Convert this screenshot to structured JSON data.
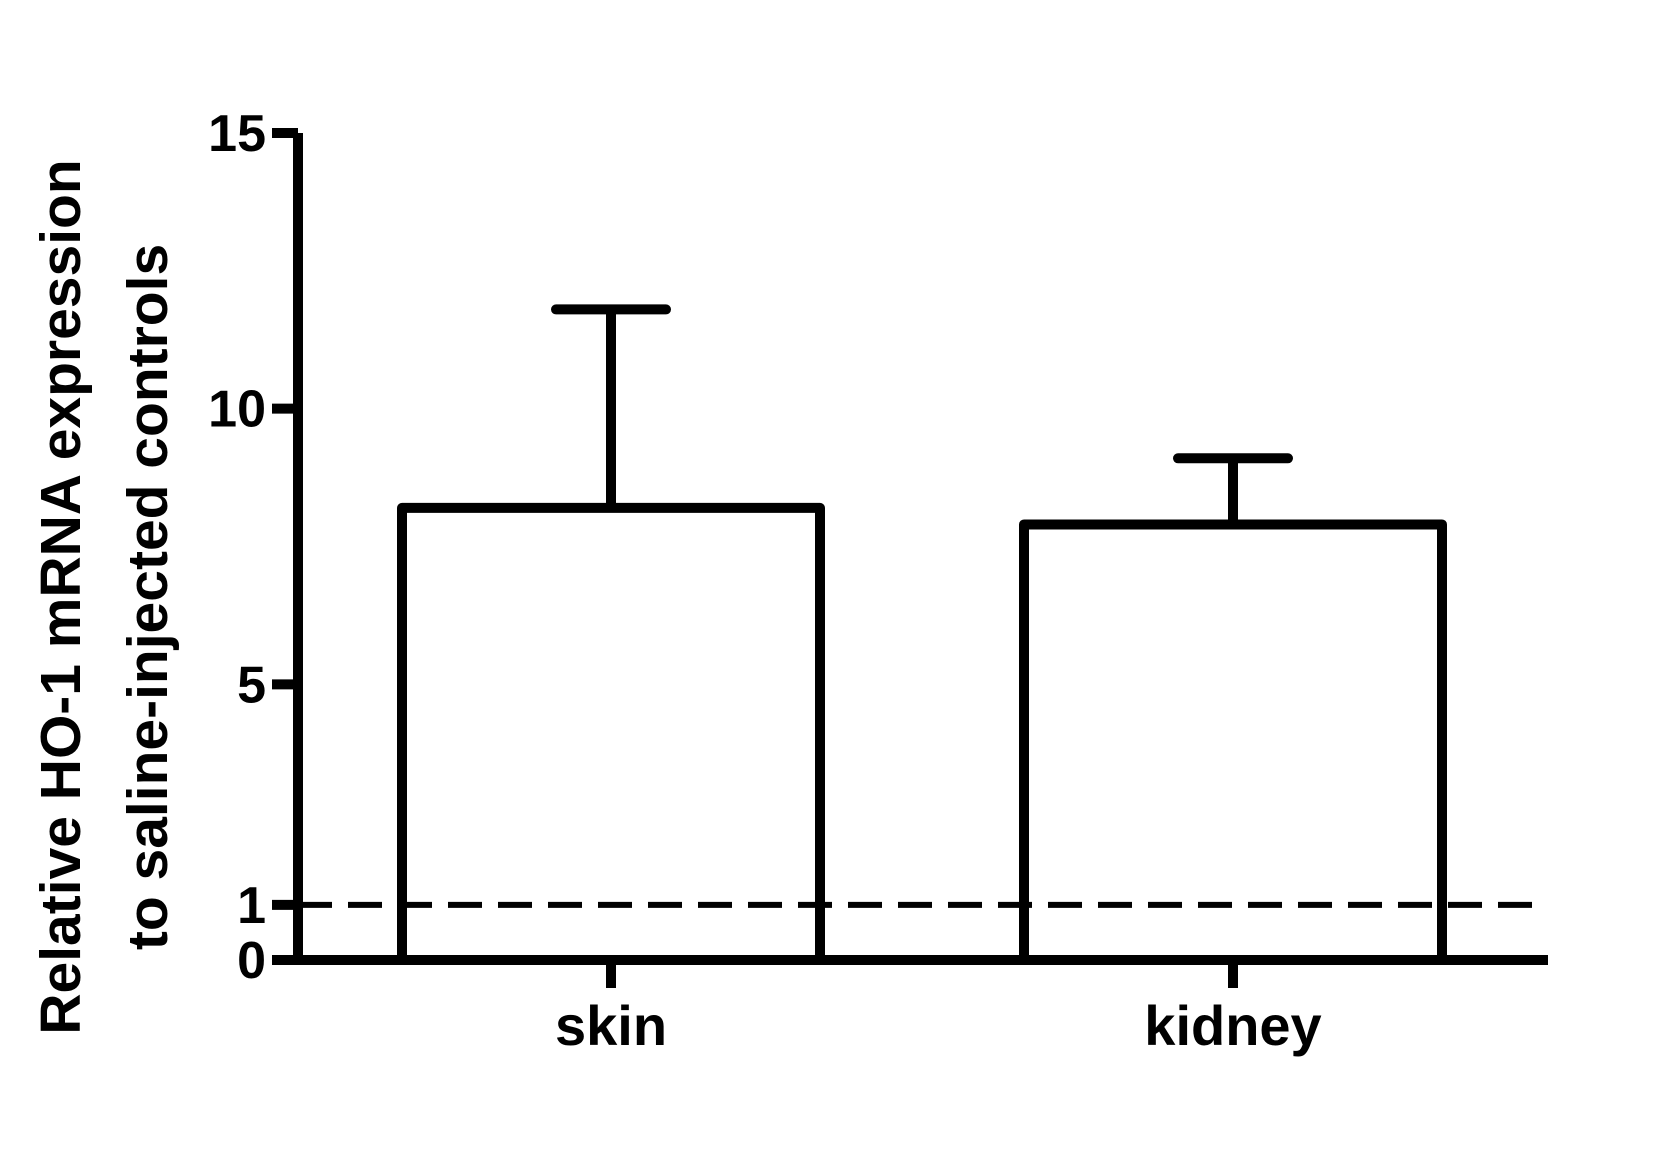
{
  "chart_data": {
    "type": "bar",
    "title": "",
    "xlabel": "",
    "ylabel_lines": [
      "Relative HO-1 mRNA expression",
      "to saline-injected controls"
    ],
    "categories": [
      "skin",
      "kidney"
    ],
    "series": [
      {
        "values": [
          8.2,
          7.9
        ],
        "error_upper": [
          11.8,
          9.1
        ]
      }
    ],
    "ylim": [
      0,
      15
    ],
    "yticks": [
      0,
      1,
      5,
      10,
      15
    ],
    "reference_line": {
      "y": 1,
      "style": "dashed"
    },
    "grid": false,
    "legend": "none",
    "colors": {
      "bar_fill": "#ffffff",
      "stroke": "#000000"
    }
  }
}
